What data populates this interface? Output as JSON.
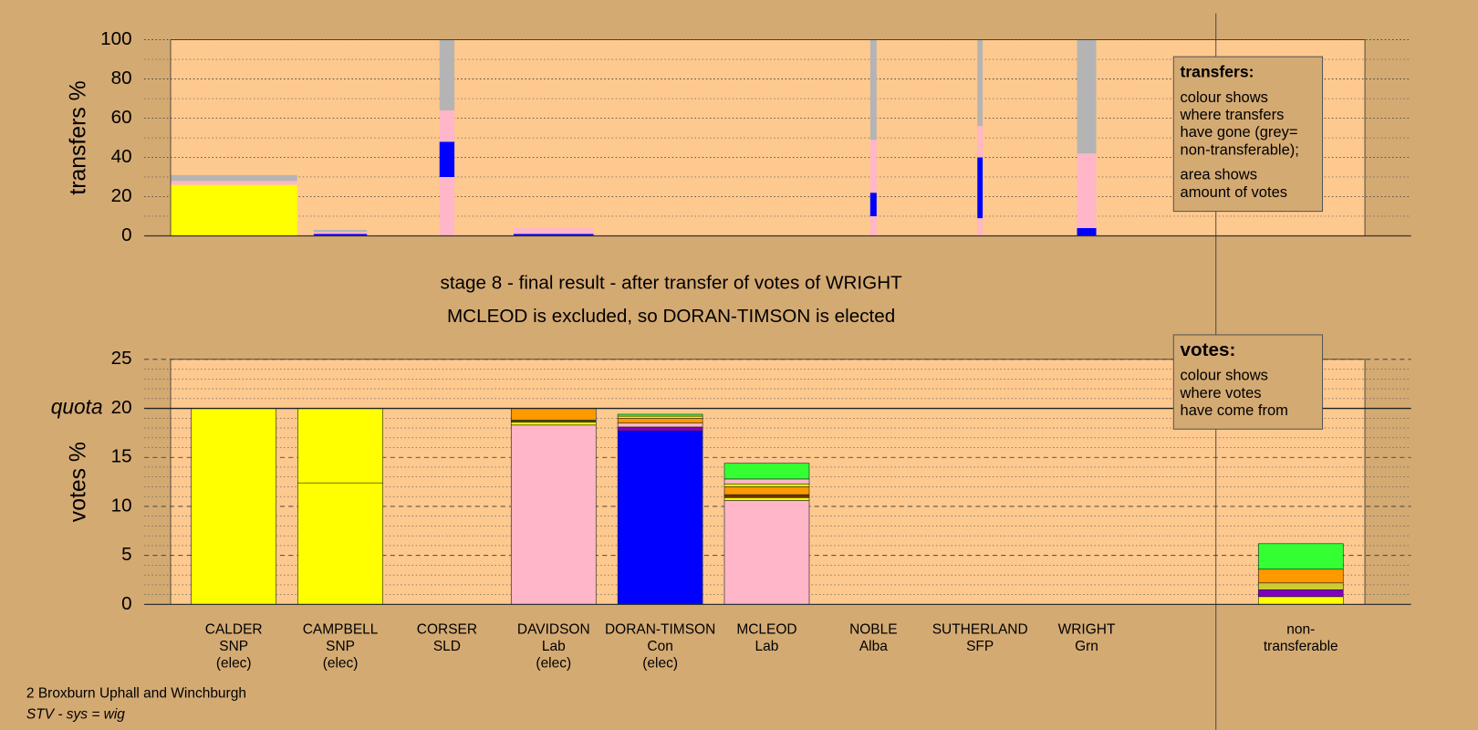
{
  "chart_data": [
    {
      "type": "bar",
      "stacked": true,
      "ylabel": "transfers %",
      "ylim": [
        0,
        100
      ],
      "yticks": [
        0,
        20,
        40,
        60,
        80,
        100
      ],
      "minor_yticks": [
        10,
        30,
        50,
        70,
        90
      ],
      "bars": [
        {
          "width": 1.19,
          "segments": [
            {
              "color": "#ffff00",
              "value": 26
            },
            {
              "color": "#ffb6c8",
              "value": 2
            },
            {
              "color": "#b4b4b4",
              "value": 3
            }
          ]
        },
        {
          "width": 0.5,
          "segments": [
            {
              "color": "#0000ff",
              "value": 1
            },
            {
              "color": "#ffb6c8",
              "value": 1
            },
            {
              "color": "#b4b4b4",
              "value": 1
            }
          ]
        },
        {
          "width": 0.14,
          "segments": [
            {
              "color": "#ffb6c8",
              "value": 30
            },
            {
              "color": "#0000ff",
              "value": 18
            },
            {
              "color": "#ffb6c8",
              "value": 16
            },
            {
              "color": "#b4b4b4",
              "value": 36
            }
          ]
        },
        {
          "width": 0.75,
          "segments": [
            {
              "color": "#0000ff",
              "value": 1
            },
            {
              "color": "#ffb6c8",
              "value": 3
            }
          ]
        },
        {
          "width": 0,
          "segments": []
        },
        {
          "width": 0,
          "segments": []
        },
        {
          "width": 0.06,
          "segments": [
            {
              "color": "#ffb6c8",
              "value": 10
            },
            {
              "color": "#0000ff",
              "value": 12
            },
            {
              "color": "#ffb6c8",
              "value": 27
            },
            {
              "color": "#b4b4b4",
              "value": 51
            }
          ]
        },
        {
          "width": 0.05,
          "segments": [
            {
              "color": "#ffb6c8",
              "value": 9
            },
            {
              "color": "#0000ff",
              "value": 31
            },
            {
              "color": "#ffb6c8",
              "value": 16
            },
            {
              "color": "#b4b4b4",
              "value": 44
            }
          ]
        },
        {
          "width": 0.18,
          "segments": [
            {
              "color": "#0000ff",
              "value": 4
            },
            {
              "color": "#ffb6c8",
              "value": 38
            },
            {
              "color": "#b4b4b4",
              "value": 58
            }
          ]
        },
        {
          "width": 0,
          "segments": []
        }
      ],
      "legend": {
        "title": "transfers:",
        "paragraphs": [
          [
            "colour shows",
            "where transfers",
            "have gone (grey=",
            "non-transferable);"
          ],
          [
            "area shows",
            "amount of votes"
          ]
        ]
      }
    },
    {
      "type": "bar",
      "stacked": true,
      "ylabel": "votes %",
      "ylim": [
        0,
        25
      ],
      "yticks": [
        0,
        5,
        10,
        15,
        20,
        25
      ],
      "minor_yticks": [
        1,
        2,
        3,
        4,
        6,
        7,
        8,
        9,
        11,
        12,
        13,
        14,
        16,
        17,
        18,
        19,
        21,
        22,
        23,
        24
      ],
      "quota": {
        "value": 20,
        "label": "quota"
      },
      "categories": [
        [
          "CALDER",
          "SNP",
          "(elec)"
        ],
        [
          "CAMPBELL",
          "SNP",
          "(elec)"
        ],
        [
          "CORSER",
          "SLD"
        ],
        [
          "DAVIDSON",
          "Lab",
          "(elec)"
        ],
        [
          "DORAN-TIMSON",
          "Con",
          "(elec)"
        ],
        [
          "MCLEOD",
          "Lab"
        ],
        [
          "NOBLE",
          "Alba"
        ],
        [
          "SUTHERLAND",
          "SFP"
        ],
        [
          "WRIGHT",
          "Grn"
        ],
        [
          "non-",
          "transferable"
        ]
      ],
      "stacks": [
        [
          {
            "color": "#ffff00",
            "value": 20
          }
        ],
        [
          {
            "color": "#ffff00",
            "value": 12.4
          },
          {
            "color": "#ffff00",
            "value": 7.6
          }
        ],
        [],
        [
          {
            "color": "#ffb6c8",
            "value": 18.3
          },
          {
            "color": "#ffff00",
            "value": 0.3
          },
          {
            "color": "#555500",
            "value": 0.2
          },
          {
            "color": "#ff9900",
            "value": 1.2
          }
        ],
        [
          {
            "color": "#0000ff",
            "value": 17.7
          },
          {
            "color": "#8000c0",
            "value": 0.4
          },
          {
            "color": "#ffb6c8",
            "value": 0.4
          },
          {
            "color": "#ff9900",
            "value": 0.5
          },
          {
            "color": "#ffff00",
            "value": 0.2
          },
          {
            "color": "#33ff33",
            "value": 0.2
          }
        ],
        [
          {
            "color": "#ffb6c8",
            "value": 10.6
          },
          {
            "color": "#ffff00",
            "value": 0.3
          },
          {
            "color": "#663300",
            "value": 0.3
          },
          {
            "color": "#ff9900",
            "value": 0.8
          },
          {
            "color": "#ffff00",
            "value": 0.3
          },
          {
            "color": "#ffb6c8",
            "value": 0.5
          },
          {
            "color": "#33ff33",
            "value": 1.6
          }
        ],
        [],
        [],
        [],
        [
          {
            "color": "#ffff00",
            "value": 0.8
          },
          {
            "color": "#8000c0",
            "value": 0.7
          },
          {
            "color": "#cccc33",
            "value": 0.7
          },
          {
            "color": "#ff9900",
            "value": 1.4
          },
          {
            "color": "#33ff33",
            "value": 2.6
          }
        ]
      ],
      "legend": {
        "title": "votes:",
        "paragraphs": [
          [
            "colour shows",
            "where votes",
            "have come from"
          ]
        ]
      }
    }
  ],
  "header": {
    "stage": "stage 8 - final result - after transfer of votes of WRIGHT",
    "result": "MCLEOD is excluded, so DORAN-TIMSON is elected"
  },
  "footer": {
    "ward": "2 Broxburn Uphall and Winchburgh",
    "system": "STV - sys = wig"
  }
}
